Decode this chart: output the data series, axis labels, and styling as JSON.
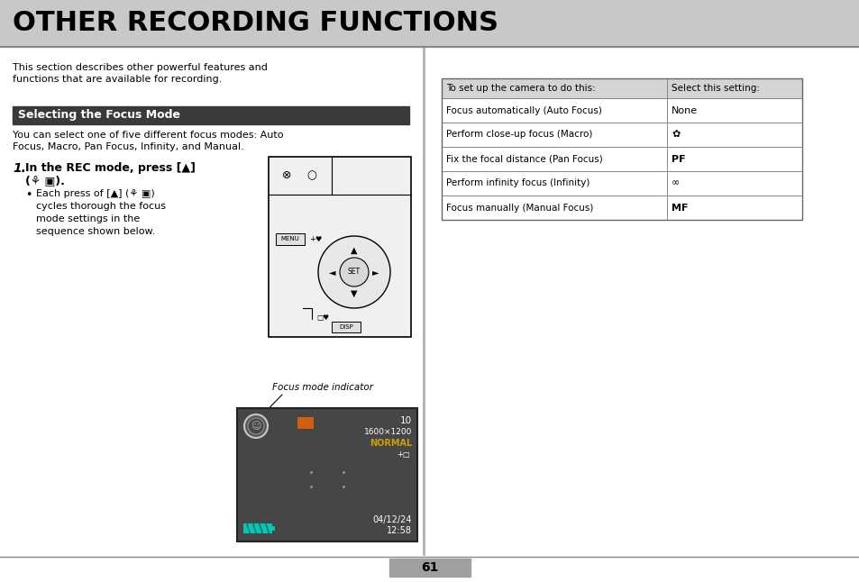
{
  "title": "OTHER RECORDING FUNCTIONS",
  "title_bg": "#c8c8c8",
  "title_color": "#000000",
  "page_bg": "#ffffff",
  "page_number": "61",
  "page_number_bg": "#a0a0a0",
  "intro_text": "This section describes other powerful features and\nfunctions that are available for recording.",
  "section_title": "Selecting the Focus Mode",
  "section_title_bg": "#3a3a3a",
  "section_title_color": "#ffffff",
  "section_body": "You can select one of five different focus modes: Auto\nFocus, Macro, Pan Focus, Infinity, and Manual.",
  "table_header": [
    "To set up the camera to do this:",
    "Select this setting:"
  ],
  "table_rows": [
    [
      "Focus automatically (Auto Focus)",
      "None"
    ],
    [
      "Perform close-up focus (Macro)",
      "✿"
    ],
    [
      "Fix the focal distance (Pan Focus)",
      "PF"
    ],
    [
      "Perform infinity focus (Infinity)",
      "∞"
    ],
    [
      "Focus manually (Manual Focus)",
      "MF"
    ]
  ],
  "table_bold_col2": [
    false,
    false,
    true,
    false,
    true
  ],
  "camera_bg": "#464646",
  "camera_text_color": "#ffffff",
  "camera_normal_color": "#c8a000",
  "camera_battery_color": "#00c8b4",
  "camera_orange_color": "#d06010"
}
